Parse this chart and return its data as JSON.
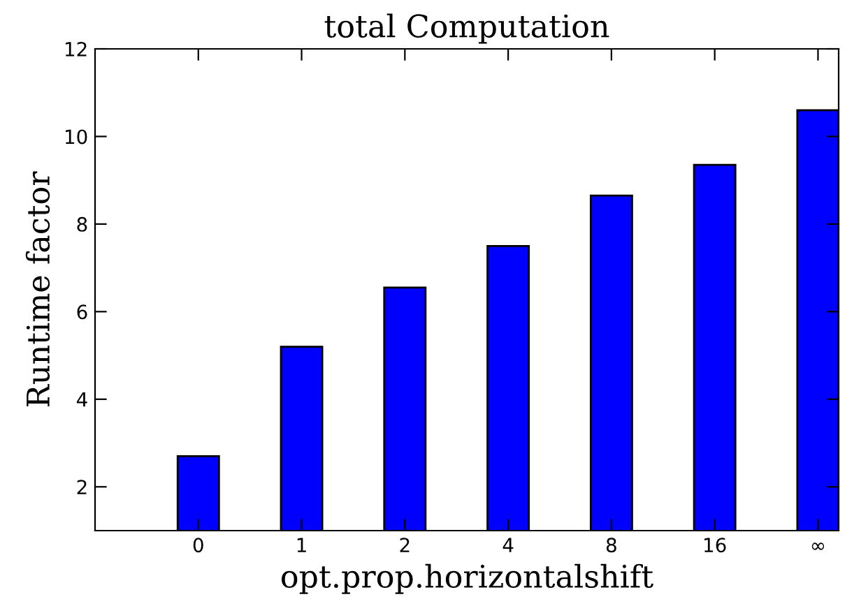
{
  "chart_data": {
    "type": "bar",
    "title": "total Computation",
    "xlabel": "opt.prop.horizontalshift",
    "ylabel": "Runtime factor",
    "categories": [
      null,
      "0",
      "1",
      "2",
      "4",
      "8",
      "16",
      "∞"
    ],
    "values": [
      null,
      2.7,
      5.2,
      6.55,
      7.5,
      8.65,
      9.35,
      10.6
    ],
    "color": "#0000ff",
    "ylim": [
      1,
      12
    ],
    "yticks": [
      2,
      4,
      6,
      8,
      10,
      12
    ],
    "grid": false,
    "legend": false
  }
}
